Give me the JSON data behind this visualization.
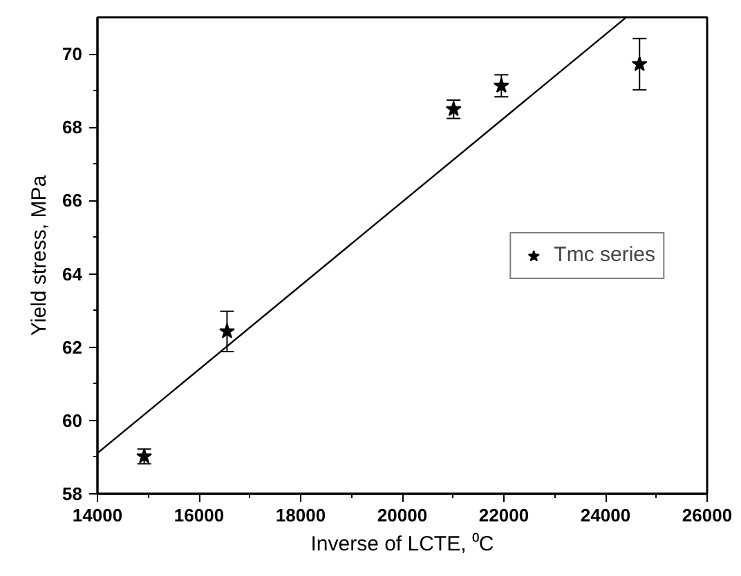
{
  "chart_data": {
    "type": "scatter",
    "xlabel": "Inverse of LCTE, ⁰C",
    "ylabel": "Yield stress, MPa",
    "xlim": [
      14000,
      26000
    ],
    "xticks": [
      14000,
      16000,
      18000,
      20000,
      22000,
      24000,
      26000
    ],
    "ylim": [
      58,
      71
    ],
    "yticks": [
      58,
      60,
      62,
      64,
      66,
      68,
      70
    ],
    "grid": false,
    "legend": "right",
    "series": [
      {
        "name": "Tmc series",
        "marker": "star",
        "color": "#000000",
        "x": [
          14920,
          16550,
          21010,
          21950,
          24670
        ],
        "values": [
          59.02,
          62.43,
          68.49,
          69.13,
          69.72
        ],
        "errors": [
          0.2,
          0.55,
          0.25,
          0.3,
          0.7
        ]
      },
      {
        "type": "line",
        "marker": "none",
        "color": "#000000",
        "x": [
          14000,
          24390
        ],
        "values": [
          59.11,
          70.98
        ]
      }
    ]
  }
}
